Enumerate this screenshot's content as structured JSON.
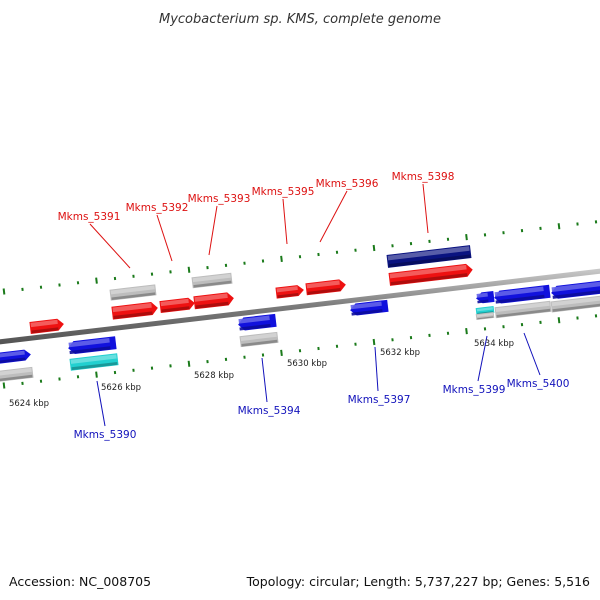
{
  "title": "Mycobacterium sp. KMS, complete genome",
  "colors": {
    "forward_gene": "#ee1111",
    "forward_label": "#dd1111",
    "reverse_gene": "#1111dd",
    "reverse_label": "#1111bb",
    "dark_gene": "#0a1380",
    "cyan_gene": "#22d0d0",
    "grey_feature": "#bdbdbd",
    "tick": "#1a7a1a",
    "backbone": "#808080"
  },
  "ticks": [
    {
      "label": "5624 kbp"
    },
    {
      "label": "5626 kbp"
    },
    {
      "label": "5628 kbp"
    },
    {
      "label": "5630 kbp"
    },
    {
      "label": "5632 kbp"
    },
    {
      "label": "5634 kbp"
    }
  ],
  "labels_forward": [
    "Mkms_5391",
    "Mkms_5392",
    "Mkms_5393",
    "Mkms_5395",
    "Mkms_5396",
    "Mkms_5398"
  ],
  "labels_reverse": [
    "Mkms_5390",
    "Mkms_5394",
    "Mkms_5397",
    "Mkms_5399",
    "Mkms_5400"
  ],
  "footer": {
    "accession": "Accession: NC_008705",
    "summary": "Topology: circular; Length: 5,737,227 bp; Genes: 5,516"
  }
}
